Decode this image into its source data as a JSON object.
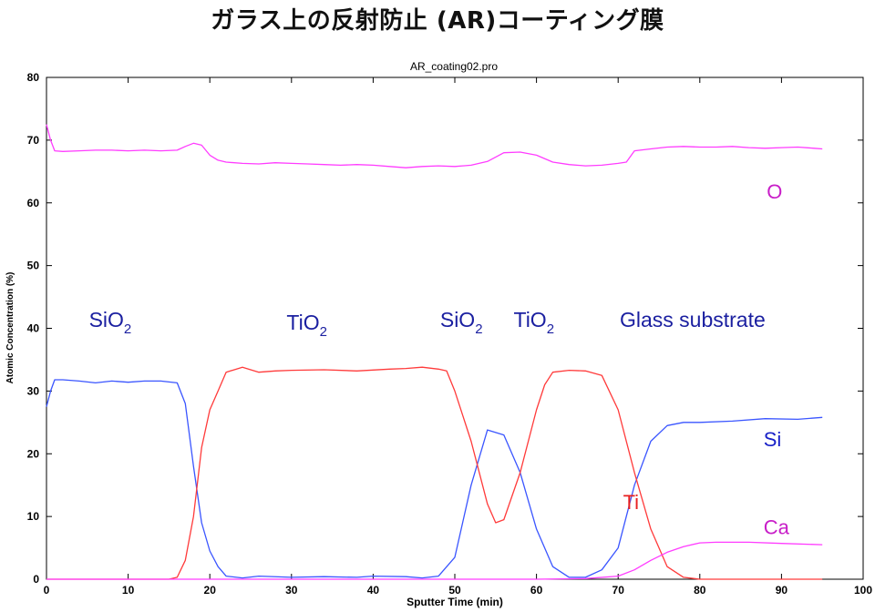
{
  "page_title": "ガラス上の反射防止 (AR)コーティング膜",
  "chart_data": {
    "type": "line",
    "title": "AR_coating02.pro",
    "xlabel": "Sputter Time (min)",
    "ylabel": "Atomic Concentration (%)",
    "xlim": [
      0,
      100
    ],
    "ylim": [
      0,
      80
    ],
    "x_ticks": [
      "0",
      "10",
      "20",
      "30",
      "40",
      "50",
      "60",
      "70",
      "80",
      "90",
      "100"
    ],
    "y_ticks": [
      "0",
      "10",
      "20",
      "30",
      "40",
      "50",
      "60",
      "70",
      "80"
    ],
    "grid": false,
    "series": [
      {
        "name": "O",
        "color": "#ff3cff",
        "x": [
          0,
          0.5,
          1,
          2,
          4,
          6,
          8,
          10,
          12,
          14,
          16,
          17,
          18,
          19,
          20,
          21,
          22,
          24,
          26,
          28,
          30,
          32,
          34,
          36,
          38,
          40,
          42,
          44,
          46,
          48,
          50,
          52,
          54,
          56,
          58,
          60,
          62,
          64,
          66,
          68,
          70,
          71,
          72,
          74,
          76,
          78,
          80,
          82,
          84,
          86,
          88,
          90,
          92,
          94,
          95
        ],
        "y": [
          72.5,
          70,
          68.3,
          68.2,
          68.3,
          68.4,
          68.4,
          68.3,
          68.4,
          68.3,
          68.4,
          69,
          69.5,
          69.2,
          67.6,
          66.8,
          66.5,
          66.3,
          66.2,
          66.4,
          66.3,
          66.2,
          66.1,
          66.0,
          66.1,
          66.0,
          65.8,
          65.6,
          65.8,
          65.9,
          65.8,
          66.0,
          66.6,
          68.0,
          68.1,
          67.6,
          66.5,
          66.1,
          65.9,
          66.0,
          66.3,
          66.5,
          68.3,
          68.6,
          68.9,
          69.0,
          68.9,
          68.9,
          69.0,
          68.8,
          68.7,
          68.8,
          68.9,
          68.7,
          68.6
        ]
      },
      {
        "name": "Si",
        "color": "#3a55ff",
        "x": [
          0,
          0.5,
          1,
          2,
          4,
          6,
          8,
          10,
          12,
          14,
          16,
          17,
          18,
          19,
          20,
          21,
          22,
          24,
          26,
          30,
          34,
          38,
          40,
          44,
          46,
          48,
          50,
          52,
          54,
          56,
          58,
          60,
          62,
          64,
          66,
          68,
          70,
          72,
          74,
          76,
          78,
          80,
          84,
          88,
          92,
          95
        ],
        "y": [
          27.5,
          30,
          31.8,
          31.8,
          31.6,
          31.3,
          31.6,
          31.4,
          31.6,
          31.6,
          31.3,
          28,
          18,
          9,
          4.5,
          2,
          0.5,
          0.2,
          0.5,
          0.3,
          0.4,
          0.3,
          0.5,
          0.4,
          0.2,
          0.5,
          3.5,
          15,
          23.8,
          23,
          17,
          8,
          2,
          0.3,
          0.3,
          1.5,
          5,
          15,
          22,
          24.5,
          25,
          25,
          25.2,
          25.6,
          25.5,
          25.8
        ]
      },
      {
        "name": "Ti",
        "color": "#ff3a3a",
        "x": [
          0,
          5,
          10,
          15,
          16,
          17,
          18,
          19,
          20,
          21,
          22,
          24,
          26,
          28,
          30,
          34,
          38,
          42,
          44,
          46,
          48,
          49,
          50,
          52,
          54,
          55,
          56,
          58,
          60,
          61,
          62,
          64,
          66,
          68,
          70,
          72,
          74,
          76,
          78,
          80,
          85,
          90,
          95
        ],
        "y": [
          0,
          0,
          0,
          0,
          0.3,
          3,
          10,
          21,
          27,
          30,
          33,
          33.8,
          33,
          33.2,
          33.3,
          33.4,
          33.2,
          33.5,
          33.6,
          33.8,
          33.5,
          33.2,
          30,
          22,
          12,
          9,
          9.5,
          17,
          27,
          31,
          33,
          33.3,
          33.2,
          32.5,
          27,
          17,
          8,
          2,
          0.3,
          0,
          0,
          0,
          0
        ]
      },
      {
        "name": "Ca",
        "color": "#ff3cff",
        "x": [
          0,
          10,
          20,
          30,
          40,
          50,
          60,
          66,
          70,
          72,
          74,
          76,
          78,
          80,
          82,
          86,
          90,
          95
        ],
        "y": [
          0,
          0,
          0,
          0,
          0,
          0,
          0,
          0.1,
          0.5,
          1.5,
          3,
          4.3,
          5.2,
          5.8,
          5.9,
          5.9,
          5.7,
          5.5
        ]
      }
    ],
    "region_labels": [
      {
        "text": "SiO",
        "sub": "2",
        "x": 5.2,
        "y": 40.2
      },
      {
        "text": "TiO",
        "sub": "2",
        "x": 29.4,
        "y": 39.8
      },
      {
        "text": "SiO",
        "sub": "2",
        "x": 48.2,
        "y": 40.2
      },
      {
        "text": "TiO",
        "sub": "2",
        "x": 57.2,
        "y": 40.2
      },
      {
        "text": "Glass substrate",
        "sub": "",
        "x": 70.2,
        "y": 40.2
      }
    ],
    "series_labels": [
      {
        "text": "O",
        "color": "#c81ec8",
        "x": 88.2,
        "y": 60.7
      },
      {
        "text": "Si",
        "color": "#1a22c8",
        "x": 87.8,
        "y": 21.2
      },
      {
        "text": "Ti",
        "color": "#e82020",
        "x": 70.6,
        "y": 11.2
      },
      {
        "text": "Ca",
        "color": "#c81ec8",
        "x": 87.8,
        "y": 7.2
      }
    ]
  }
}
